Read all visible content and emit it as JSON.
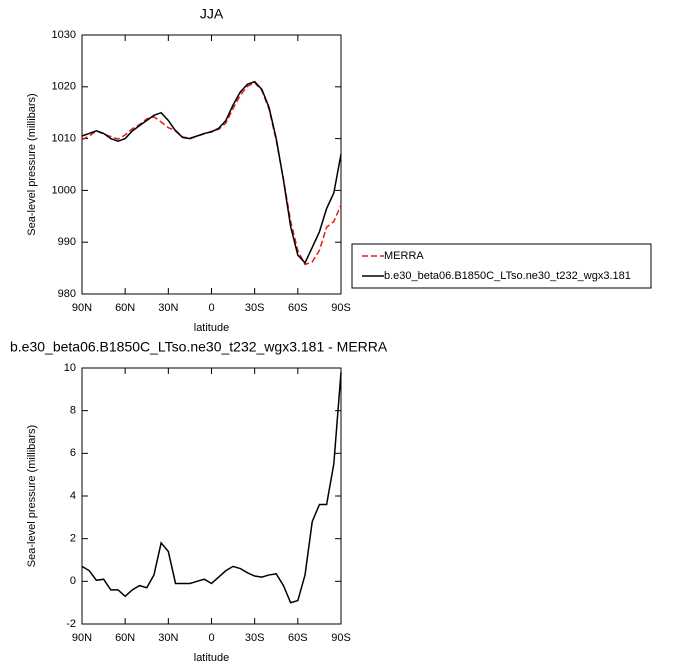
{
  "chart_data": [
    {
      "type": "line",
      "title": "JJA",
      "ylabel": "Sea-level pressure (millibars)",
      "xlabel": "latitude",
      "x": [
        90,
        85,
        80,
        75,
        70,
        65,
        60,
        55,
        50,
        45,
        40,
        35,
        30,
        25,
        20,
        15,
        10,
        5,
        0,
        -5,
        -10,
        -15,
        -20,
        -25,
        -30,
        -35,
        -40,
        -45,
        -50,
        -55,
        -60,
        -65,
        -70,
        -75,
        -80,
        -85,
        -90
      ],
      "series": [
        {
          "name": "MERRA",
          "color": "#e41a1c",
          "dash": true,
          "values": [
            1009.8,
            1010.5,
            1011.5,
            1010.9,
            1010.4,
            1009.9,
            1010.7,
            1011.9,
            1012.7,
            1013.8,
            1014.2,
            1013.2,
            1012.1,
            1011.6,
            1010.3,
            1010.1,
            1010.5,
            1010.9,
            1011.4,
            1011.8,
            1013,
            1015.8,
            1018.4,
            1020.1,
            1020.8,
            1019.3,
            1015.7,
            1009.6,
            1002.2,
            994,
            988.4,
            985.7,
            986.2,
            988.4,
            992.9,
            994,
            997.2
          ]
        },
        {
          "name": "b.e30_beta06.B1850C_LTso.ne30_t232_wgx3.181",
          "color": "#000000",
          "dash": false,
          "values": [
            1010.5,
            1011,
            1011.5,
            1011,
            1010,
            1009.5,
            1010,
            1011.5,
            1012.5,
            1013.5,
            1014.5,
            1015,
            1013.5,
            1011.5,
            1010.2,
            1010,
            1010.5,
            1011,
            1011.3,
            1012,
            1013.5,
            1016.5,
            1019,
            1020.5,
            1021,
            1019.5,
            1016,
            1010,
            1002,
            993,
            987.5,
            986,
            989,
            992,
            996.5,
            999.5,
            1007
          ]
        }
      ],
      "xlim": [
        90,
        -90
      ],
      "xticks": [
        {
          "value": 90,
          "label": "90N"
        },
        {
          "value": 60,
          "label": "60N"
        },
        {
          "value": 30,
          "label": "30N"
        },
        0,
        {
          "value": -30,
          "label": "30S"
        },
        {
          "value": -60,
          "label": "60S"
        },
        {
          "value": -90,
          "label": "90S"
        }
      ],
      "ylim": [
        980,
        1030
      ],
      "yticks": [
        980,
        990,
        1000,
        1010,
        1020,
        1030
      ]
    },
    {
      "type": "line",
      "title": "b.e30_beta06.B1850C_LTso.ne30_t232_wgx3.181 - MERRA",
      "ylabel": "Sea-level pressure (millibars)",
      "xlabel": "latitude",
      "x": [
        90,
        85,
        80,
        75,
        70,
        65,
        60,
        55,
        50,
        45,
        40,
        35,
        30,
        25,
        20,
        15,
        10,
        5,
        0,
        -5,
        -10,
        -15,
        -20,
        -25,
        -30,
        -35,
        -40,
        -45,
        -50,
        -55,
        -60,
        -65,
        -70,
        -75,
        -80,
        -85,
        -90
      ],
      "series": [
        {
          "color": "#000000",
          "dash": false,
          "values": [
            0.7,
            0.5,
            0.05,
            0.1,
            -0.4,
            -0.4,
            -0.7,
            -0.4,
            -0.2,
            -0.3,
            0.3,
            1.8,
            1.4,
            -0.1,
            -0.1,
            -0.1,
            0,
            0.1,
            -0.1,
            0.2,
            0.5,
            0.7,
            0.6,
            0.4,
            0.25,
            0.2,
            0.3,
            0.35,
            -0.2,
            -1.0,
            -0.9,
            0.3,
            2.8,
            3.6,
            3.6,
            5.5,
            9.8
          ]
        }
      ],
      "xlim": [
        90,
        -90
      ],
      "xticks": [
        {
          "value": 90,
          "label": "90N"
        },
        {
          "value": 60,
          "label": "60N"
        },
        {
          "value": 30,
          "label": "30N"
        },
        0,
        {
          "value": -30,
          "label": "30S"
        },
        {
          "value": -60,
          "label": "60S"
        },
        {
          "value": -90,
          "label": "90S"
        }
      ],
      "ylim": [
        -2,
        10
      ],
      "yticks": [
        -2,
        0,
        2,
        4,
        6,
        8,
        10
      ]
    }
  ]
}
